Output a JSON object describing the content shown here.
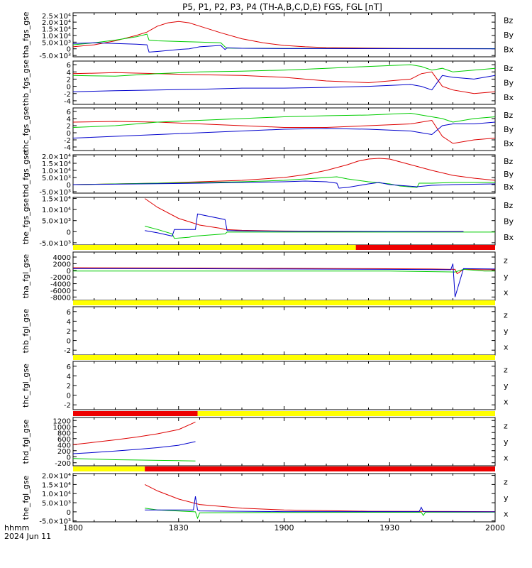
{
  "title": "P5, P1, P2, P3, P4 (TH-A,B,C,D,E) FGS, FGL [nT]",
  "colors": {
    "x": "#0000cc",
    "y": "#00cc00",
    "z": "#dd0000",
    "flag_yellow": "#ffff00",
    "flag_red": "#ee0000"
  },
  "time_axis": {
    "label_line1": "hhmm",
    "label_line2": "2024 Jun 11",
    "range_min": [
      0,
      200
    ],
    "ticks": [
      {
        "label": "1800",
        "minute": 0
      },
      {
        "label": "1830",
        "minute": 50
      },
      {
        "label": "1900",
        "minute": 100
      },
      {
        "label": "1930",
        "minute": 150
      },
      {
        "label": "2000",
        "minute": 200
      }
    ]
  },
  "chart_data": [
    {
      "type": "line",
      "ylabel": "tha_fgs_gse",
      "ylim": [
        -6000,
        27000
      ],
      "ticks": [
        "2.5×10⁴",
        "2.0×10⁴",
        "1.5×10⁴",
        "1.0×10⁴",
        "5.0×10³",
        "0",
        "-5.0×10³"
      ],
      "tick_values": [
        25000,
        20000,
        15000,
        10000,
        5000,
        0,
        -5000
      ],
      "legend": [
        "Bz",
        "By",
        "Bx"
      ],
      "series": [
        {
          "name": "Bz",
          "x": [
            0,
            10,
            20,
            25,
            30,
            35,
            40,
            45,
            50,
            55,
            60,
            70,
            80,
            90,
            100,
            110,
            120,
            140,
            160,
            180,
            200
          ],
          "y": [
            1500,
            3000,
            6000,
            8000,
            10000,
            12500,
            17000,
            19500,
            20500,
            19500,
            17000,
            12000,
            7500,
            4500,
            2500,
            1500,
            900,
            500,
            300,
            200,
            100
          ]
        },
        {
          "name": "By",
          "x": [
            0,
            10,
            20,
            30,
            35,
            36,
            40,
            50,
            60,
            70,
            72,
            73,
            80,
            100,
            150,
            200
          ],
          "y": [
            3000,
            4500,
            6500,
            9000,
            11000,
            6500,
            6000,
            5500,
            5000,
            4500,
            1500,
            500,
            400,
            300,
            200,
            100
          ]
        },
        {
          "name": "Bx",
          "x": [
            0,
            10,
            20,
            30,
            35,
            36,
            40,
            50,
            55,
            60,
            70,
            72,
            73,
            80,
            100,
            150,
            200
          ],
          "y": [
            4000,
            4500,
            4000,
            3500,
            3000,
            -2500,
            -2000,
            -500,
            0,
            1500,
            2500,
            -500,
            700,
            400,
            200,
            100,
            0
          ]
        }
      ]
    },
    {
      "type": "line",
      "ylabel": "thb_fgs_gse",
      "ylim": [
        -5,
        7
      ],
      "ticks": [
        "6",
        "4",
        "2",
        "0",
        "-2",
        "-4"
      ],
      "tick_values": [
        6,
        4,
        2,
        0,
        -2,
        -4
      ],
      "legend": [
        "Bz",
        "By",
        "Bx"
      ],
      "series": [
        {
          "name": "Bz",
          "x": [
            0,
            20,
            40,
            60,
            80,
            100,
            120,
            140,
            160,
            165,
            170,
            175,
            180,
            190,
            200
          ],
          "y": [
            3.5,
            3.8,
            3.5,
            3.2,
            3.0,
            2.5,
            1.5,
            1.0,
            2.0,
            3.5,
            4.0,
            0.0,
            -1.0,
            -2.0,
            -1.5
          ]
        },
        {
          "name": "By",
          "x": [
            0,
            20,
            40,
            60,
            80,
            100,
            120,
            140,
            160,
            165,
            170,
            175,
            180,
            190,
            200
          ],
          "y": [
            3.0,
            2.8,
            3.5,
            4.0,
            4.2,
            4.5,
            5.0,
            5.5,
            6.0,
            5.5,
            4.5,
            5.0,
            4.0,
            4.5,
            5.0
          ]
        },
        {
          "name": "Bx",
          "x": [
            0,
            20,
            40,
            60,
            80,
            100,
            120,
            140,
            160,
            165,
            170,
            175,
            180,
            190,
            200
          ],
          "y": [
            -1.5,
            -1.2,
            -1.0,
            -0.8,
            -0.5,
            -0.5,
            -0.3,
            0.0,
            0.5,
            0.0,
            -1.0,
            3.0,
            2.5,
            2.0,
            3.0
          ]
        }
      ]
    },
    {
      "type": "line",
      "ylabel": "thc_fgs_gse",
      "ylim": [
        -5,
        7
      ],
      "ticks": [
        "6",
        "4",
        "2",
        "0",
        "-2",
        "-4"
      ],
      "tick_values": [
        6,
        4,
        2,
        0,
        -2,
        -4
      ],
      "legend": [
        "Bz",
        "By",
        "Bx"
      ],
      "series": [
        {
          "name": "Bz",
          "x": [
            0,
            20,
            40,
            60,
            80,
            100,
            120,
            140,
            160,
            165,
            170,
            175,
            180,
            190,
            200
          ],
          "y": [
            3.0,
            3.2,
            3.0,
            2.5,
            2.0,
            1.5,
            1.5,
            2.0,
            2.5,
            3.0,
            3.5,
            -1.0,
            -3.0,
            -2.0,
            -1.5
          ]
        },
        {
          "name": "By",
          "x": [
            0,
            20,
            40,
            60,
            80,
            100,
            120,
            140,
            160,
            165,
            170,
            175,
            180,
            190,
            200
          ],
          "y": [
            1.5,
            2.0,
            3.0,
            3.5,
            4.0,
            4.5,
            4.8,
            5.0,
            5.5,
            5.0,
            4.5,
            4.0,
            3.0,
            4.0,
            4.5
          ]
        },
        {
          "name": "Bx",
          "x": [
            0,
            20,
            40,
            60,
            80,
            100,
            120,
            140,
            160,
            165,
            170,
            175,
            180,
            190,
            200
          ],
          "y": [
            -1.5,
            -1.0,
            -0.5,
            0.0,
            0.5,
            1.0,
            1.2,
            1.0,
            0.5,
            0.0,
            -0.5,
            2.0,
            2.5,
            2.5,
            3.0
          ]
        }
      ]
    },
    {
      "type": "line",
      "ylabel": "thd_fgs_gse",
      "ylim": [
        -6000,
        21000
      ],
      "ticks": [
        "2.0×10⁴",
        "1.5×10⁴",
        "1.0×10⁴",
        "5.0×10³",
        "0",
        "-5.0×10³"
      ],
      "tick_values": [
        20000,
        15000,
        10000,
        5000,
        0,
        -5000
      ],
      "legend": [
        "Bz",
        "By",
        "Bx"
      ],
      "series": [
        {
          "name": "Bz",
          "x": [
            0,
            20,
            40,
            60,
            80,
            100,
            110,
            120,
            130,
            135,
            140,
            145,
            150,
            160,
            170,
            180,
            190,
            200
          ],
          "y": [
            0,
            500,
            1000,
            2000,
            3000,
            5000,
            7000,
            10000,
            14000,
            16500,
            18000,
            18500,
            18000,
            14000,
            10000,
            6500,
            4500,
            3000
          ]
        },
        {
          "name": "By",
          "x": [
            0,
            20,
            40,
            60,
            80,
            100,
            110,
            120,
            125,
            130,
            140,
            150,
            155,
            163,
            164,
            170,
            180,
            200
          ],
          "y": [
            0,
            500,
            1000,
            1500,
            2000,
            3000,
            4000,
            5000,
            5500,
            4000,
            2000,
            500,
            -1000,
            -2000,
            1000,
            1000,
            1500,
            1500
          ]
        },
        {
          "name": "Bx",
          "x": [
            0,
            20,
            40,
            60,
            80,
            100,
            110,
            120,
            125,
            126,
            130,
            140,
            145,
            150,
            163,
            170,
            180,
            200
          ],
          "y": [
            0,
            300,
            600,
            1000,
            1500,
            2000,
            2500,
            2000,
            1000,
            -2500,
            -2000,
            500,
            1500,
            0,
            -1500,
            -500,
            0,
            500
          ]
        }
      ]
    },
    {
      "type": "line",
      "ylabel": "the_fgs_gse",
      "ylim": [
        -6000,
        15500
      ],
      "ticks": [
        "1.5×10⁴",
        "1.0×10⁴",
        "5.0×10³",
        "0",
        "-5.0×10³"
      ],
      "tick_values": [
        15000,
        10000,
        5000,
        0,
        -5000
      ],
      "legend": [
        "Bz",
        "By",
        "Bx"
      ],
      "series": [
        {
          "name": "Bz",
          "x": [
            34,
            40,
            50,
            60,
            70,
            72,
            80,
            100,
            140,
            185
          ],
          "y": [
            15000,
            11000,
            6000,
            3000,
            1500,
            1000,
            600,
            300,
            100,
            50
          ]
        },
        {
          "name": "By",
          "x": [
            34,
            40,
            47,
            48,
            55,
            58,
            72,
            73,
            100,
            200
          ],
          "y": [
            2500,
            1000,
            -1000,
            -3000,
            -2500,
            -2000,
            -1000,
            -200,
            -200,
            -200
          ]
        },
        {
          "name": "Bx",
          "x": [
            34,
            40,
            47,
            48,
            50,
            58,
            59,
            72,
            73,
            80,
            100,
            150,
            185
          ],
          "y": [
            500,
            -500,
            -2000,
            1000,
            1000,
            1000,
            8000,
            5500,
            500,
            400,
            200,
            100,
            0
          ]
        }
      ]
    },
    {
      "type": "line",
      "ylabel": "tha_fgl_gse",
      "ylim": [
        -9000,
        5500
      ],
      "ticks": [
        "4000",
        "2000",
        "0",
        "-2000",
        "-4000",
        "-6000",
        "-8000"
      ],
      "tick_values": [
        4000,
        2000,
        0,
        -2000,
        -4000,
        -6000,
        -8000
      ],
      "legend": [
        "z",
        "y",
        "x"
      ],
      "series": [
        {
          "name": "z",
          "x": [
            0,
            50,
            100,
            140,
            170,
            181,
            182,
            185,
            195,
            200
          ],
          "y": [
            800,
            700,
            600,
            500,
            400,
            300,
            -1000,
            300,
            200,
            200
          ]
        },
        {
          "name": "y",
          "x": [
            0,
            50,
            100,
            150,
            181,
            185,
            195,
            200
          ],
          "y": [
            -200,
            -200,
            -200,
            -200,
            -500,
            300,
            -200,
            -200
          ]
        },
        {
          "name": "x",
          "x": [
            0,
            50,
            100,
            150,
            179,
            180,
            181,
            185,
            200
          ],
          "y": [
            500,
            500,
            400,
            300,
            200,
            2000,
            -8000,
            500,
            400
          ]
        }
      ]
    },
    {
      "type": "line",
      "ylabel": "thb_fgl_gse",
      "ylim": [
        -3,
        7
      ],
      "ticks": [
        "6",
        "4",
        "2",
        "0",
        "-2"
      ],
      "tick_values": [
        6,
        4,
        2,
        0,
        -2
      ],
      "legend": [
        "z",
        "y",
        "x"
      ],
      "series": []
    },
    {
      "type": "line",
      "ylabel": "thc_fgl_gse",
      "ylim": [
        -3,
        7
      ],
      "ticks": [
        "6",
        "4",
        "2",
        "0",
        "-2"
      ],
      "tick_values": [
        6,
        4,
        2,
        0,
        -2
      ],
      "legend": [
        "z",
        "y",
        "x"
      ],
      "series": []
    },
    {
      "type": "line",
      "ylabel": "thd_fgl_gse",
      "ylim": [
        -300,
        1300
      ],
      "ticks": [
        "1200",
        "1000",
        "800",
        "600",
        "400",
        "200",
        "0",
        "-200"
      ],
      "tick_values": [
        1200,
        1000,
        800,
        600,
        400,
        200,
        0,
        -200
      ],
      "legend": [
        "z",
        "y",
        "x"
      ],
      "series": [
        {
          "name": "z",
          "x": [
            0,
            10,
            20,
            30,
            40,
            50,
            58
          ],
          "y": [
            400,
            480,
            560,
            650,
            760,
            900,
            1150
          ]
        },
        {
          "name": "y",
          "x": [
            0,
            10,
            20,
            30,
            40,
            50,
            58
          ],
          "y": [
            -60,
            -80,
            -100,
            -110,
            -120,
            -130,
            -140
          ]
        },
        {
          "name": "x",
          "x": [
            0,
            10,
            20,
            30,
            40,
            50,
            58
          ],
          "y": [
            100,
            140,
            190,
            240,
            300,
            380,
            500
          ]
        }
      ]
    },
    {
      "type": "line",
      "ylabel": "the_fgl_gse",
      "ylim": [
        -5500,
        21000
      ],
      "ticks": [
        "2.0×10⁴",
        "1.5×10⁴",
        "1.0×10⁴",
        "5.0×10³",
        "0",
        "-5.0×10³"
      ],
      "tick_values": [
        20000,
        15000,
        10000,
        5000,
        0,
        -5000
      ],
      "legend": [
        "z",
        "y",
        "x"
      ],
      "series": [
        {
          "name": "z",
          "x": [
            34,
            40,
            50,
            60,
            80,
            100,
            140,
            200
          ],
          "y": [
            15000,
            11500,
            7000,
            4000,
            2000,
            1000,
            300,
            100
          ]
        },
        {
          "name": "y",
          "x": [
            34,
            40,
            58,
            59,
            60,
            100,
            165,
            166,
            167,
            200
          ],
          "y": [
            2000,
            1000,
            0,
            -3500,
            -500,
            -300,
            -200,
            -2000,
            -200,
            -200
          ]
        },
        {
          "name": "x",
          "x": [
            34,
            57,
            58,
            59,
            60,
            80,
            100,
            164,
            165,
            166,
            200
          ],
          "y": [
            1000,
            1000,
            8500,
            1000,
            500,
            300,
            100,
            100,
            2500,
            100,
            0
          ]
        }
      ]
    }
  ],
  "flag_bars": [
    {
      "after_panel": 4,
      "segments": [
        {
          "color": "yellow",
          "from": 0,
          "to": 134
        },
        {
          "color": "red",
          "from": 134,
          "to": 200
        }
      ]
    },
    {
      "after_panel": 5,
      "segments": [
        {
          "color": "yellow",
          "from": 0,
          "to": 200
        }
      ]
    },
    {
      "after_panel": 6,
      "segments": [
        {
          "color": "yellow",
          "from": 0,
          "to": 200
        }
      ]
    },
    {
      "after_panel": 7,
      "segments": [
        {
          "color": "red",
          "from": 0,
          "to": 59
        },
        {
          "color": "yellow",
          "from": 59,
          "to": 200
        }
      ]
    },
    {
      "after_panel": 8,
      "segments": [
        {
          "color": "yellow",
          "from": 0,
          "to": 34
        },
        {
          "color": "red",
          "from": 34,
          "to": 200
        }
      ]
    }
  ]
}
